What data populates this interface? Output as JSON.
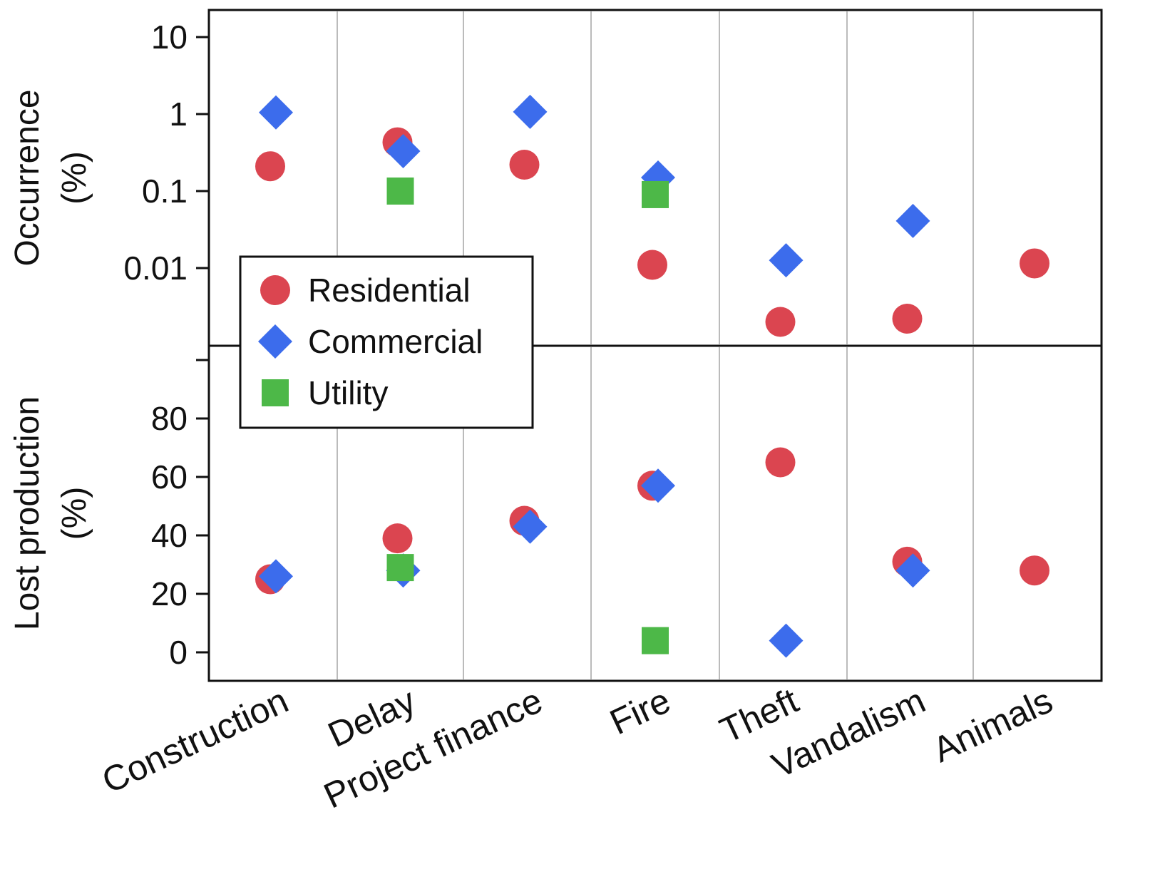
{
  "chart_data": {
    "type": "scatter",
    "categories": [
      "Construction",
      "Delay",
      "Project finance",
      "Fire",
      "Theft",
      "Vandalism",
      "Animals"
    ],
    "colors": {
      "Residential": "#db4550",
      "Commercial": "#3c6cec",
      "Utility": "#4db848"
    },
    "legend": {
      "position": "center-left",
      "entries": [
        "Residential",
        "Commercial",
        "Utility"
      ]
    },
    "panels": [
      {
        "name": "occurrence",
        "ylabel_line1": "Occurrence",
        "ylabel_line2": "(%)",
        "scale": "log",
        "ylim": [
          0.001,
          15
        ],
        "ticks": [
          {
            "v": 10,
            "label": "10"
          },
          {
            "v": 1,
            "label": "1"
          },
          {
            "v": 0.1,
            "label": "0.1"
          },
          {
            "v": 0.01,
            "label": "0.01"
          }
        ],
        "series": [
          {
            "name": "Residential",
            "values": [
              0.21,
              0.43,
              0.22,
              0.011,
              0.002,
              0.0022,
              0.0115
            ]
          },
          {
            "name": "Commercial",
            "values": [
              1.05,
              0.33,
              1.07,
              0.15,
              0.0126,
              0.041,
              null
            ]
          },
          {
            "name": "Utility",
            "values": [
              null,
              0.1,
              null,
              0.09,
              null,
              null,
              null
            ]
          }
        ]
      },
      {
        "name": "lost-production",
        "ylabel_line1": "Lost production",
        "ylabel_line2": "(%)",
        "scale": "linear",
        "ylim": [
          -10,
          105
        ],
        "ticks": [
          {
            "v": 100,
            "label": ""
          },
          {
            "v": 80,
            "label": "80"
          },
          {
            "v": 60,
            "label": "60"
          },
          {
            "v": 40,
            "label": "40"
          },
          {
            "v": 20,
            "label": "20"
          },
          {
            "v": 0,
            "label": "0"
          }
        ],
        "series": [
          {
            "name": "Residential",
            "values": [
              25,
              39,
              45,
              57,
              65,
              31,
              28
            ]
          },
          {
            "name": "Commercial",
            "values": [
              26,
              28,
              43,
              57,
              4,
              28,
              null
            ]
          },
          {
            "name": "Utility",
            "values": [
              null,
              29,
              null,
              4,
              null,
              null,
              null
            ]
          }
        ]
      }
    ]
  }
}
